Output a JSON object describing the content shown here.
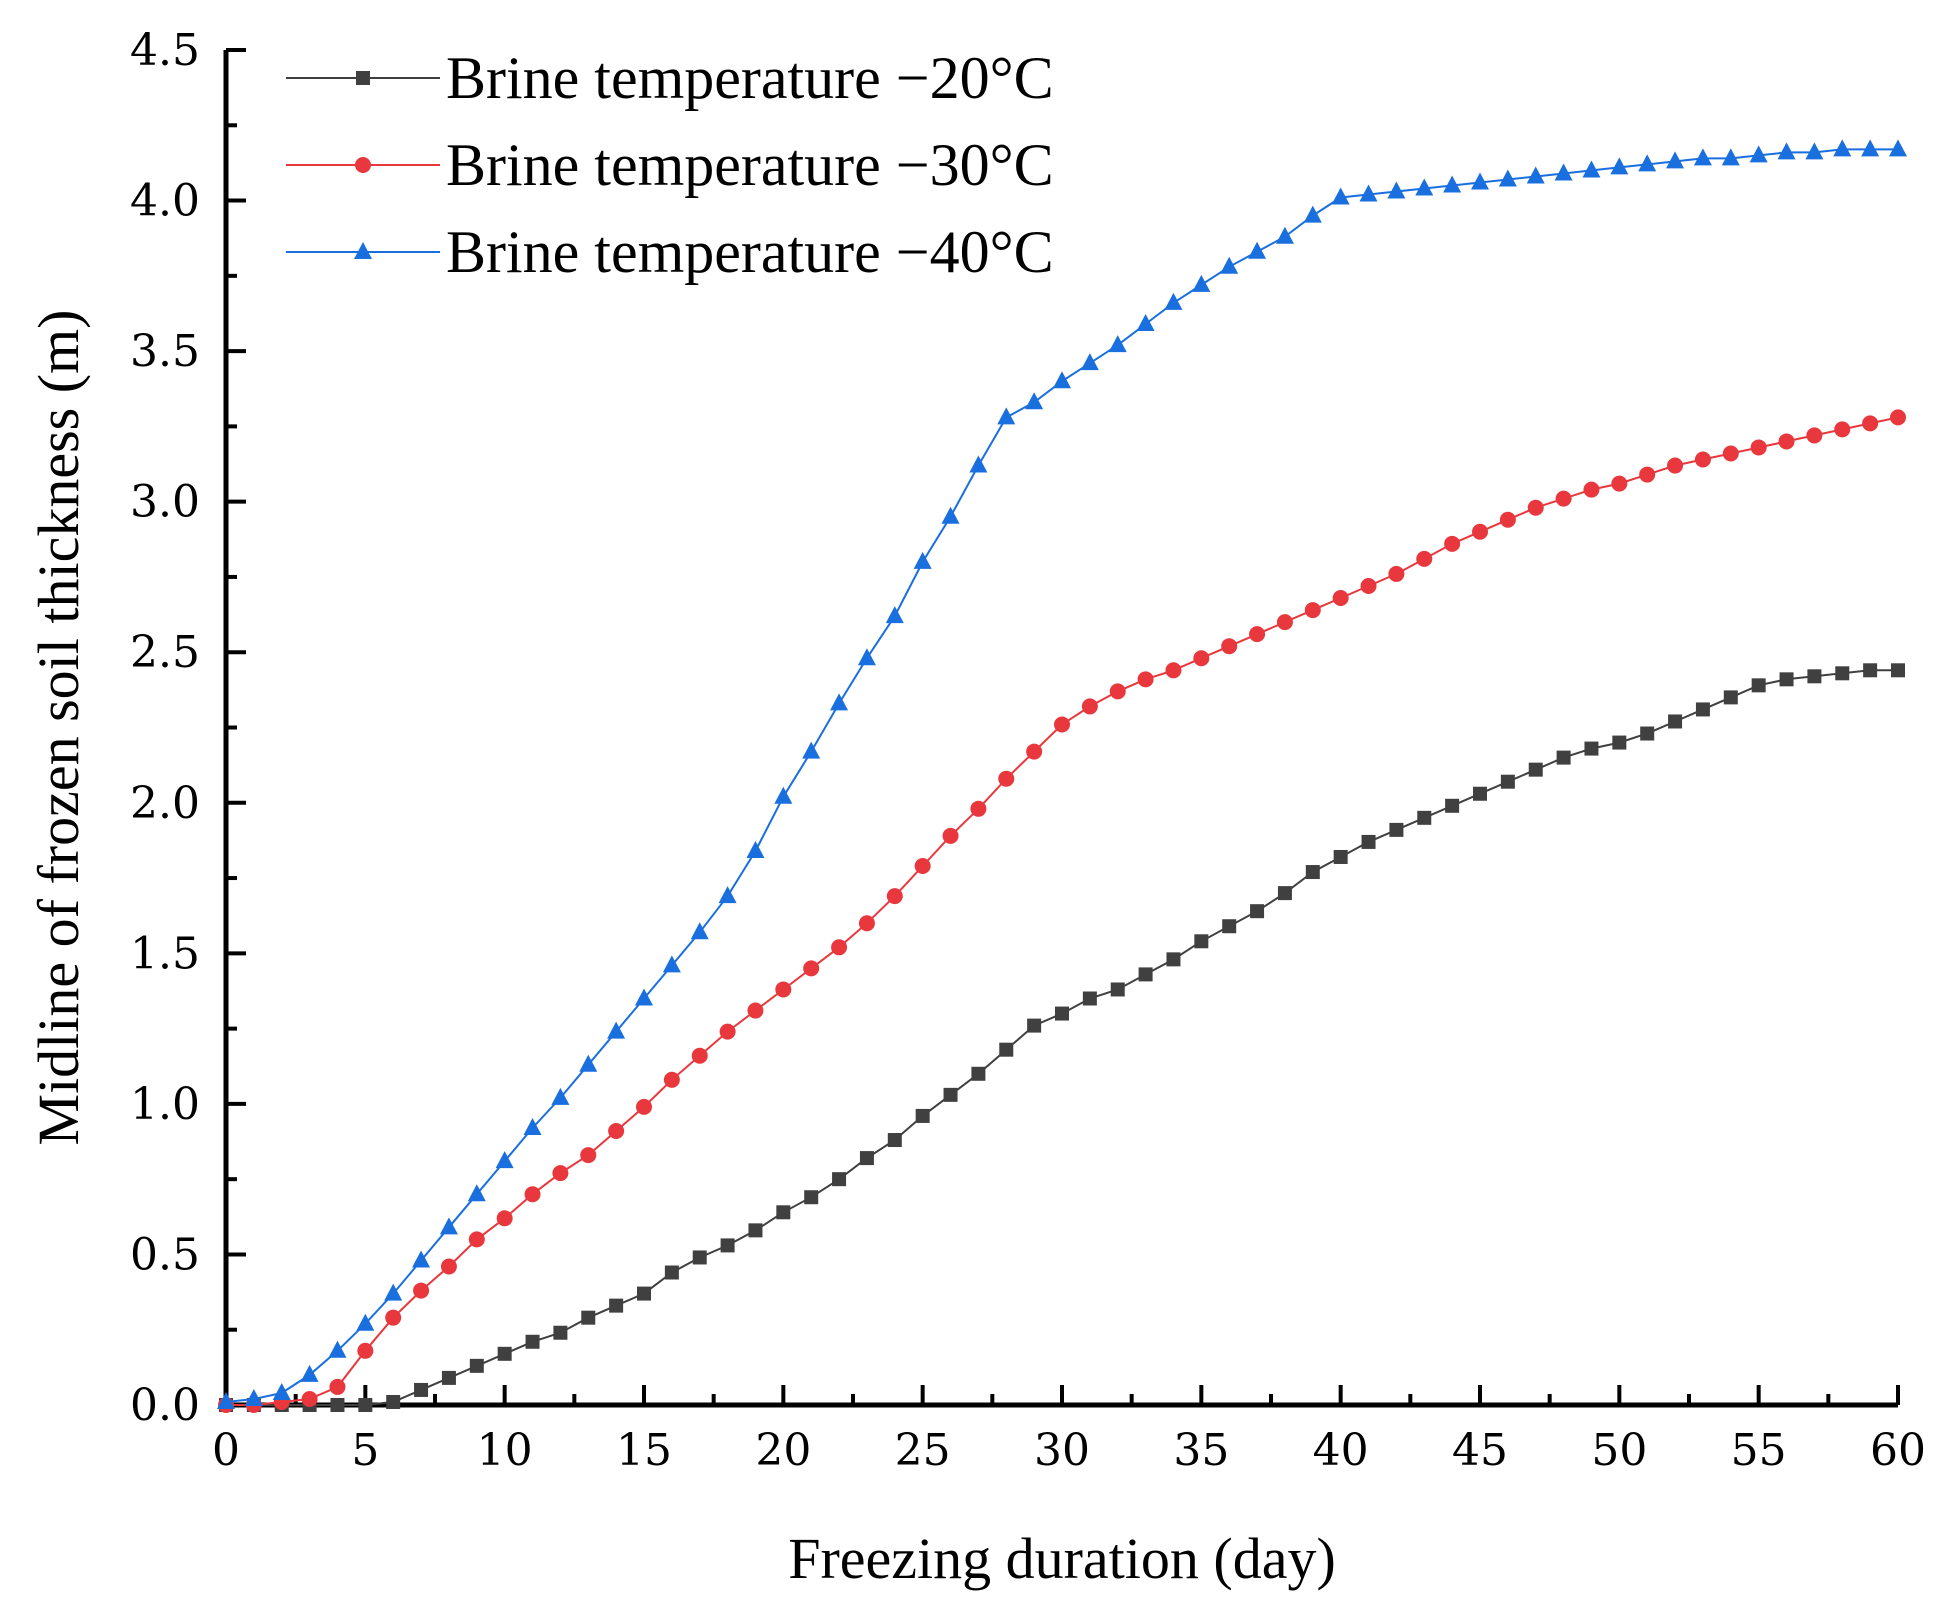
{
  "chart_data": {
    "type": "line",
    "title": "",
    "xlabel": "Freezing duration (day)",
    "ylabel": "Midline of frozen soil thickness (m)",
    "xlim": [
      0,
      60
    ],
    "ylim": [
      0,
      4.5
    ],
    "xticks": [
      "0",
      "5",
      "10",
      "15",
      "20",
      "25",
      "30",
      "35",
      "40",
      "45",
      "50",
      "55",
      "60"
    ],
    "yticks": [
      "0.0",
      "0.5",
      "1.0",
      "1.5",
      "2.0",
      "2.5",
      "3.0",
      "3.5",
      "4.0",
      "4.5"
    ],
    "grid": false,
    "legend_position": "top-left",
    "series": [
      {
        "name": "Brine temperature −20°C",
        "color": "#404040",
        "marker": "square",
        "points": [
          [
            0,
            0
          ],
          [
            1,
            0
          ],
          [
            2,
            0
          ],
          [
            3,
            0
          ],
          [
            4,
            0
          ],
          [
            5,
            0
          ],
          [
            6,
            0.01
          ],
          [
            7,
            0.05
          ],
          [
            8,
            0.09
          ],
          [
            9,
            0.13
          ],
          [
            10,
            0.17
          ],
          [
            11,
            0.21
          ],
          [
            12,
            0.24
          ],
          [
            13,
            0.29
          ],
          [
            14,
            0.33
          ],
          [
            15,
            0.37
          ],
          [
            16,
            0.44
          ],
          [
            17,
            0.49
          ],
          [
            18,
            0.53
          ],
          [
            19,
            0.58
          ],
          [
            20,
            0.64
          ],
          [
            21,
            0.69
          ],
          [
            22,
            0.75
          ],
          [
            23,
            0.82
          ],
          [
            24,
            0.88
          ],
          [
            25,
            0.96
          ],
          [
            26,
            1.03
          ],
          [
            27,
            1.1
          ],
          [
            28,
            1.18
          ],
          [
            29,
            1.26
          ],
          [
            30,
            1.3
          ],
          [
            31,
            1.35
          ],
          [
            32,
            1.38
          ],
          [
            33,
            1.43
          ],
          [
            34,
            1.48
          ],
          [
            35,
            1.54
          ],
          [
            36,
            1.59
          ],
          [
            37,
            1.64
          ],
          [
            38,
            1.7
          ],
          [
            39,
            1.77
          ],
          [
            40,
            1.82
          ],
          [
            41,
            1.87
          ],
          [
            42,
            1.91
          ],
          [
            43,
            1.95
          ],
          [
            44,
            1.99
          ],
          [
            45,
            2.03
          ],
          [
            46,
            2.07
          ],
          [
            47,
            2.11
          ],
          [
            48,
            2.15
          ],
          [
            49,
            2.18
          ],
          [
            50,
            2.2
          ],
          [
            51,
            2.23
          ],
          [
            52,
            2.27
          ],
          [
            53,
            2.31
          ],
          [
            54,
            2.35
          ],
          [
            55,
            2.39
          ],
          [
            56,
            2.41
          ],
          [
            57,
            2.42
          ],
          [
            58,
            2.43
          ],
          [
            59,
            2.44
          ],
          [
            60,
            2.44
          ]
        ]
      },
      {
        "name": "Brine temperature −30°C",
        "color": "#e8383d",
        "marker": "circle",
        "points": [
          [
            0,
            0
          ],
          [
            1,
            0
          ],
          [
            2,
            0.01
          ],
          [
            3,
            0.02
          ],
          [
            4,
            0.06
          ],
          [
            5,
            0.18
          ],
          [
            6,
            0.29
          ],
          [
            7,
            0.38
          ],
          [
            8,
            0.46
          ],
          [
            9,
            0.55
          ],
          [
            10,
            0.62
          ],
          [
            11,
            0.7
          ],
          [
            12,
            0.77
          ],
          [
            13,
            0.83
          ],
          [
            14,
            0.91
          ],
          [
            15,
            0.99
          ],
          [
            16,
            1.08
          ],
          [
            17,
            1.16
          ],
          [
            18,
            1.24
          ],
          [
            19,
            1.31
          ],
          [
            20,
            1.38
          ],
          [
            21,
            1.45
          ],
          [
            22,
            1.52
          ],
          [
            23,
            1.6
          ],
          [
            24,
            1.69
          ],
          [
            25,
            1.79
          ],
          [
            26,
            1.89
          ],
          [
            27,
            1.98
          ],
          [
            28,
            2.08
          ],
          [
            29,
            2.17
          ],
          [
            30,
            2.26
          ],
          [
            31,
            2.32
          ],
          [
            32,
            2.37
          ],
          [
            33,
            2.41
          ],
          [
            34,
            2.44
          ],
          [
            35,
            2.48
          ],
          [
            36,
            2.52
          ],
          [
            37,
            2.56
          ],
          [
            38,
            2.6
          ],
          [
            39,
            2.64
          ],
          [
            40,
            2.68
          ],
          [
            41,
            2.72
          ],
          [
            42,
            2.76
          ],
          [
            43,
            2.81
          ],
          [
            44,
            2.86
          ],
          [
            45,
            2.9
          ],
          [
            46,
            2.94
          ],
          [
            47,
            2.98
          ],
          [
            48,
            3.01
          ],
          [
            49,
            3.04
          ],
          [
            50,
            3.06
          ],
          [
            51,
            3.09
          ],
          [
            52,
            3.12
          ],
          [
            53,
            3.14
          ],
          [
            54,
            3.16
          ],
          [
            55,
            3.18
          ],
          [
            56,
            3.2
          ],
          [
            57,
            3.22
          ],
          [
            58,
            3.24
          ],
          [
            59,
            3.26
          ],
          [
            60,
            3.28
          ]
        ]
      },
      {
        "name": "Brine temperature −40°C",
        "color": "#1a6fdf",
        "marker": "triangle",
        "points": [
          [
            0,
            0.01
          ],
          [
            1,
            0.02
          ],
          [
            2,
            0.04
          ],
          [
            3,
            0.1
          ],
          [
            4,
            0.18
          ],
          [
            5,
            0.27
          ],
          [
            6,
            0.37
          ],
          [
            7,
            0.48
          ],
          [
            8,
            0.59
          ],
          [
            9,
            0.7
          ],
          [
            10,
            0.81
          ],
          [
            11,
            0.92
          ],
          [
            12,
            1.02
          ],
          [
            13,
            1.13
          ],
          [
            14,
            1.24
          ],
          [
            15,
            1.35
          ],
          [
            16,
            1.46
          ],
          [
            17,
            1.57
          ],
          [
            18,
            1.69
          ],
          [
            19,
            1.84
          ],
          [
            20,
            2.02
          ],
          [
            21,
            2.17
          ],
          [
            22,
            2.33
          ],
          [
            23,
            2.48
          ],
          [
            24,
            2.62
          ],
          [
            25,
            2.8
          ],
          [
            26,
            2.95
          ],
          [
            27,
            3.12
          ],
          [
            28,
            3.28
          ],
          [
            29,
            3.33
          ],
          [
            30,
            3.4
          ],
          [
            31,
            3.46
          ],
          [
            32,
            3.52
          ],
          [
            33,
            3.59
          ],
          [
            34,
            3.66
          ],
          [
            35,
            3.72
          ],
          [
            36,
            3.78
          ],
          [
            37,
            3.83
          ],
          [
            38,
            3.88
          ],
          [
            39,
            3.95
          ],
          [
            40,
            4.01
          ],
          [
            41,
            4.02
          ],
          [
            42,
            4.03
          ],
          [
            43,
            4.04
          ],
          [
            44,
            4.05
          ],
          [
            45,
            4.06
          ],
          [
            46,
            4.07
          ],
          [
            47,
            4.08
          ],
          [
            48,
            4.09
          ],
          [
            49,
            4.1
          ],
          [
            50,
            4.11
          ],
          [
            51,
            4.12
          ],
          [
            52,
            4.13
          ],
          [
            53,
            4.14
          ],
          [
            54,
            4.14
          ],
          [
            55,
            4.15
          ],
          [
            56,
            4.16
          ],
          [
            57,
            4.16
          ],
          [
            58,
            4.17
          ],
          [
            59,
            4.17
          ],
          [
            60,
            4.17
          ]
        ]
      }
    ]
  }
}
